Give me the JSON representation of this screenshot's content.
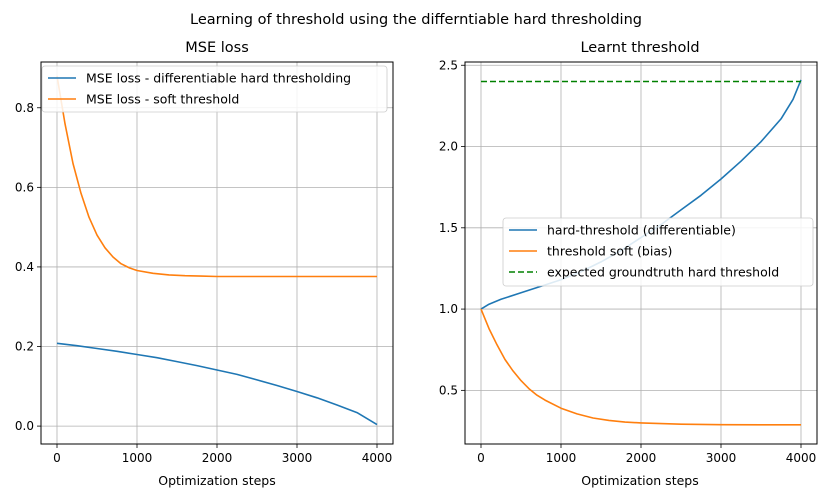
{
  "figure": {
    "suptitle": "Learning of threshold using the differntiable hard thresholding"
  },
  "chart_data": [
    {
      "type": "line",
      "title": "MSE loss",
      "xlabel": "Optimization steps",
      "ylabel": "",
      "xlim": [
        -200,
        4200
      ],
      "ylim": [
        -0.045,
        0.915
      ],
      "xticks": [
        0,
        1000,
        2000,
        3000,
        4000
      ],
      "yticks": [
        0.0,
        0.2,
        0.4,
        0.6,
        0.8
      ],
      "xticklabels": [
        "0",
        "1000",
        "2000",
        "3000",
        "4000"
      ],
      "yticklabels": [
        "0.0",
        "0.2",
        "0.4",
        "0.6",
        "0.8"
      ],
      "grid": true,
      "legend_position": "top",
      "series": [
        {
          "name": "MSE loss - differentiable hard thresholding",
          "color": "#1f77b4",
          "dash": "solid",
          "x": [
            0,
            250,
            500,
            750,
            1000,
            1250,
            1500,
            1750,
            2000,
            2250,
            2500,
            2750,
            3000,
            3250,
            3500,
            3750,
            4000
          ],
          "y": [
            0.208,
            0.202,
            0.195,
            0.188,
            0.18,
            0.172,
            0.162,
            0.152,
            0.141,
            0.13,
            0.116,
            0.102,
            0.087,
            0.071,
            0.053,
            0.034,
            0.004
          ]
        },
        {
          "name": "MSE loss - soft threshold",
          "color": "#ff7f0e",
          "dash": "solid",
          "x": [
            0,
            100,
            200,
            300,
            400,
            500,
            600,
            700,
            800,
            900,
            1000,
            1200,
            1400,
            1600,
            1800,
            2000,
            2500,
            3000,
            3500,
            4000
          ],
          "y": [
            0.88,
            0.76,
            0.66,
            0.585,
            0.525,
            0.48,
            0.448,
            0.425,
            0.408,
            0.398,
            0.391,
            0.384,
            0.38,
            0.378,
            0.377,
            0.376,
            0.376,
            0.376,
            0.376,
            0.376
          ]
        }
      ]
    },
    {
      "type": "line",
      "title": "Learnt threshold",
      "xlabel": "Optimization steps",
      "ylabel": "",
      "xlim": [
        -200,
        4200
      ],
      "ylim": [
        0.17,
        2.52
      ],
      "xticks": [
        0,
        1000,
        2000,
        3000,
        4000
      ],
      "yticks": [
        0.5,
        1.0,
        1.5,
        2.0,
        2.5
      ],
      "xticklabels": [
        "0",
        "1000",
        "2000",
        "3000",
        "4000"
      ],
      "yticklabels": [
        "0.5",
        "1.0",
        "1.5",
        "2.0",
        "2.5"
      ],
      "grid": true,
      "legend_position": "center right",
      "series": [
        {
          "name": "hard-threshold (differentiable)",
          "color": "#1f77b4",
          "dash": "solid",
          "x": [
            0,
            100,
            250,
            500,
            750,
            1000,
            1250,
            1500,
            1750,
            2000,
            2250,
            2500,
            2750,
            3000,
            3250,
            3500,
            3750,
            3900,
            4000
          ],
          "y": [
            1.0,
            1.03,
            1.06,
            1.1,
            1.14,
            1.18,
            1.23,
            1.29,
            1.36,
            1.44,
            1.52,
            1.61,
            1.7,
            1.8,
            1.91,
            2.03,
            2.17,
            2.29,
            2.41
          ]
        },
        {
          "name": "threshold soft (bias)",
          "color": "#ff7f0e",
          "dash": "solid",
          "x": [
            0,
            100,
            200,
            300,
            400,
            500,
            600,
            700,
            800,
            1000,
            1200,
            1400,
            1600,
            1800,
            2000,
            2500,
            3000,
            3500,
            4000
          ],
          "y": [
            1.0,
            0.88,
            0.78,
            0.69,
            0.62,
            0.56,
            0.51,
            0.47,
            0.44,
            0.39,
            0.355,
            0.33,
            0.315,
            0.305,
            0.3,
            0.292,
            0.289,
            0.288,
            0.288
          ]
        },
        {
          "name": "expected groundtruth hard threshold",
          "color": "#008000",
          "dash": "dashed",
          "x": [
            0,
            4000
          ],
          "y": [
            2.4,
            2.4
          ]
        }
      ]
    }
  ]
}
